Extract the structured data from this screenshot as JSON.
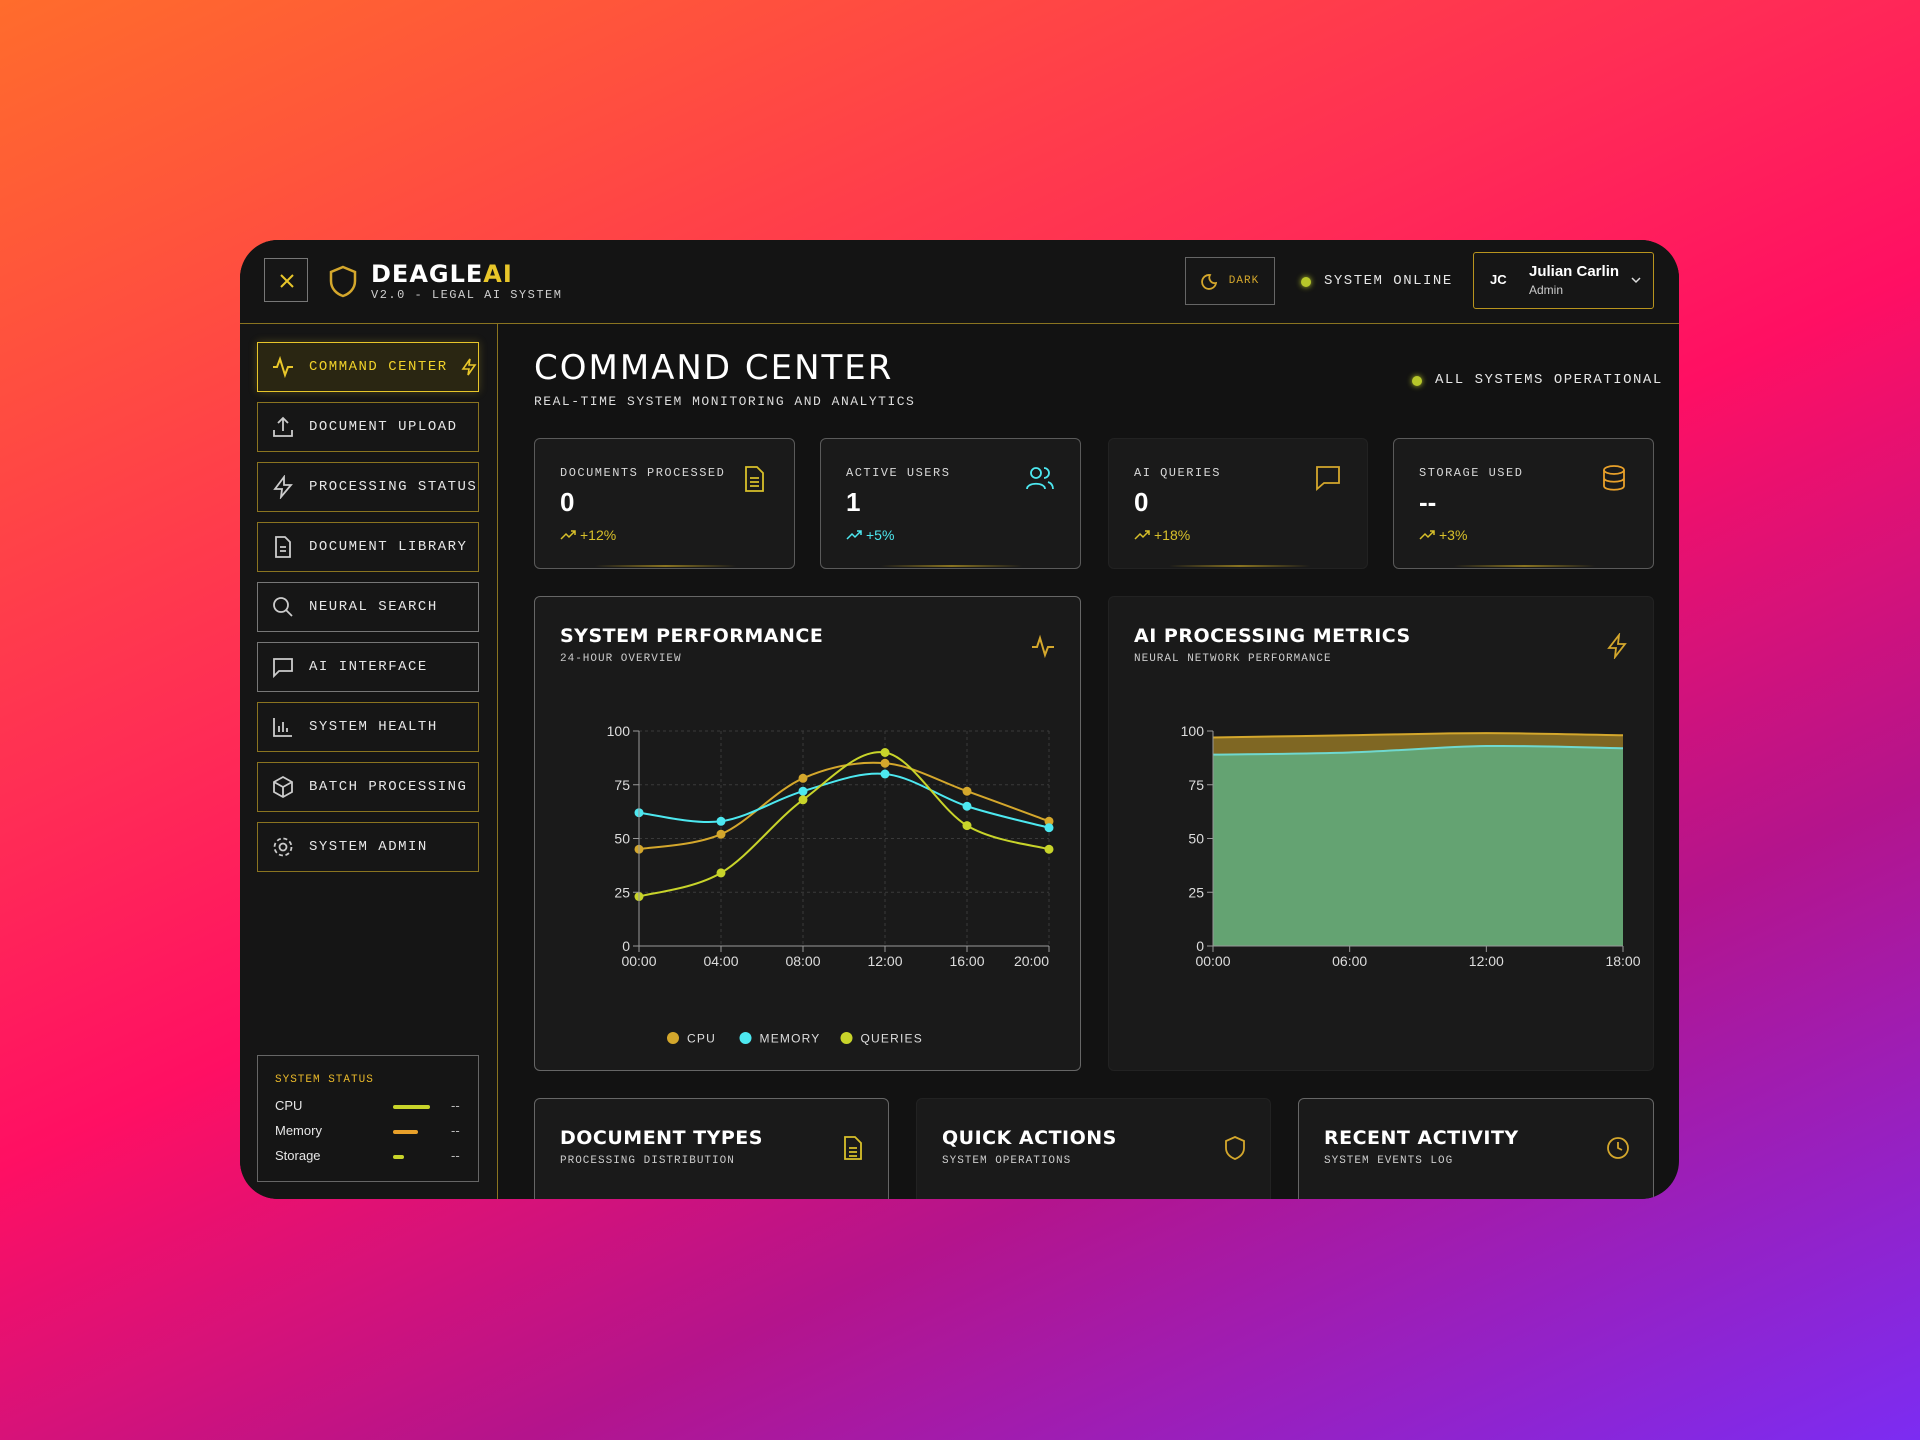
{
  "header": {
    "logo": "DEAGLE",
    "logo_accent": "AI",
    "subtitle": "V2.0 - LEGAL AI SYSTEM",
    "theme_button": "DARK",
    "status": "SYSTEM ONLINE",
    "user": {
      "initials": "JC",
      "name": "Julian Carlin",
      "role": "Admin"
    }
  },
  "sidebar": {
    "nav": [
      "COMMAND CENTER",
      "DOCUMENT UPLOAD",
      "PROCESSING STATUS",
      "DOCUMENT LIBRARY",
      "NEURAL SEARCH",
      "AI INTERFACE",
      "SYSTEM HEALTH",
      "BATCH PROCESSING",
      "SYSTEM ADMIN"
    ],
    "system_status": {
      "title": "SYSTEM STATUS",
      "rows": [
        {
          "label": "CPU",
          "value": "--"
        },
        {
          "label": "Memory",
          "value": "--"
        },
        {
          "label": "Storage",
          "value": "--"
        }
      ]
    }
  },
  "main": {
    "title": "COMMAND CENTER",
    "subtitle": "REAL-TIME SYSTEM MONITORING AND ANALYTICS",
    "status": "ALL SYSTEMS OPERATIONAL",
    "stats": [
      {
        "label": "DOCUMENTS PROCESSED",
        "value": 0,
        "change": "+12%"
      },
      {
        "label": "ACTIVE USERS",
        "value": 1,
        "change": "+5%"
      },
      {
        "label": "AI QUERIES",
        "value": 0,
        "change": "+18%"
      },
      {
        "label": "STORAGE USED",
        "value": "--",
        "change": "+3%"
      }
    ],
    "charts": [
      {
        "type": "line",
        "title": "SYSTEM PERFORMANCE",
        "subtitle": "24-HOUR OVERVIEW",
        "categories": [
          "00:00",
          "04:00",
          "08:00",
          "12:00",
          "16:00",
          "20:00"
        ],
        "series": [
          {
            "name": "CPU",
            "color": "#d4a72c",
            "values": [
              45,
              52,
              78,
              85,
              72,
              58
            ]
          },
          {
            "name": "MEMORY",
            "color": "#4de8f0",
            "values": [
              62,
              58,
              72,
              80,
              65,
              55
            ]
          },
          {
            "name": "QUERIES",
            "color": "#c8d42a",
            "values": [
              23,
              34,
              68,
              90,
              56,
              45
            ]
          }
        ],
        "ylim": [
          0,
          100
        ],
        "yticks": [
          0,
          25,
          50,
          75,
          100
        ],
        "grid": true,
        "legend": "bottom"
      },
      {
        "type": "area",
        "title": "AI PROCESSING METRICS",
        "subtitle": "NEURAL NETWORK PERFORMANCE",
        "categories": [
          "00:00",
          "06:00",
          "12:00",
          "18:00"
        ],
        "series": [
          {
            "color": "#d4a72c",
            "values": [
              97,
              98,
              99,
              98
            ]
          },
          {
            "color": "#5fae80",
            "values": [
              89,
              90,
              93,
              92
            ]
          }
        ],
        "ylim": [
          0,
          100
        ],
        "yticks": [
          0,
          25,
          50,
          75,
          100
        ],
        "grid": false
      }
    ],
    "panels": [
      {
        "title": "DOCUMENT TYPES",
        "subtitle": "PROCESSING DISTRIBUTION"
      },
      {
        "title": "QUICK ACTIONS",
        "subtitle": "SYSTEM OPERATIONS"
      },
      {
        "title": "RECENT ACTIVITY",
        "subtitle": "SYSTEM EVENTS LOG"
      }
    ]
  }
}
